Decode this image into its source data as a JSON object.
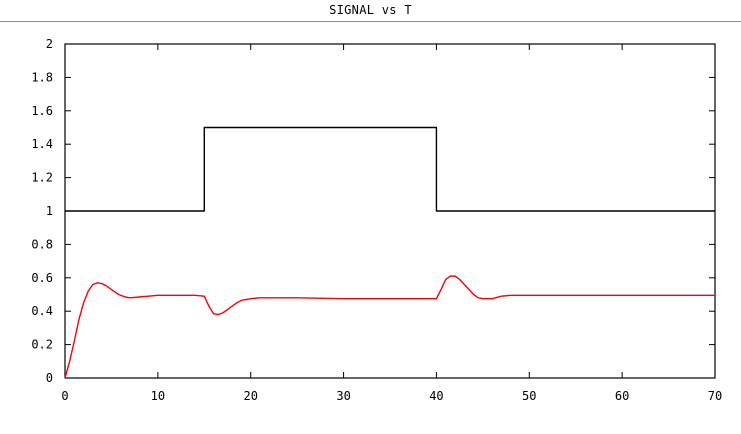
{
  "window": {
    "title": "SIGNAL vs T"
  },
  "chart_data": {
    "type": "line",
    "title": "",
    "xlabel": "",
    "ylabel": "",
    "xlim": [
      0,
      70
    ],
    "ylim": [
      0,
      2
    ],
    "xticks": [
      0,
      10,
      20,
      30,
      40,
      50,
      60,
      70
    ],
    "yticks": [
      0,
      0.2,
      0.4,
      0.6,
      0.8,
      1,
      1.2,
      1.4,
      1.6,
      1.8,
      2
    ],
    "xtick_labels": [
      "0",
      "10",
      "20",
      "30",
      "40",
      "50",
      "60",
      "70"
    ],
    "ytick_labels": [
      "0",
      "0.2",
      "0.4",
      "0.6",
      "0.8",
      "1",
      "1.2",
      "1.4",
      "1.6",
      "1.8",
      "2"
    ],
    "grid": false,
    "legend": "none",
    "series": [
      {
        "color": "#000000",
        "x": [
          0,
          15,
          15,
          40,
          40,
          70
        ],
        "y": [
          1,
          1,
          1.5,
          1.5,
          1,
          1
        ]
      },
      {
        "color": "#ff0000",
        "x": [
          0,
          0.5,
          1,
          1.5,
          2,
          2.5,
          3,
          3.5,
          4,
          4.5,
          5,
          5.5,
          6,
          6.5,
          7,
          8,
          9,
          10,
          11,
          12,
          13,
          14,
          15,
          15.5,
          16,
          16.5,
          17,
          17.5,
          18,
          18.5,
          19,
          20,
          21,
          22,
          23,
          25,
          30,
          35,
          40,
          40.5,
          41,
          41.5,
          42,
          42.5,
          43,
          43.5,
          44,
          44.5,
          45,
          46,
          47,
          48,
          50,
          55,
          60,
          65,
          70
        ],
        "y": [
          0,
          0.1,
          0.22,
          0.35,
          0.45,
          0.52,
          0.56,
          0.57,
          0.565,
          0.55,
          0.53,
          0.51,
          0.495,
          0.485,
          0.48,
          0.485,
          0.49,
          0.495,
          0.495,
          0.495,
          0.495,
          0.495,
          0.49,
          0.43,
          0.385,
          0.38,
          0.39,
          0.41,
          0.43,
          0.45,
          0.465,
          0.475,
          0.48,
          0.48,
          0.48,
          0.48,
          0.475,
          0.475,
          0.475,
          0.53,
          0.59,
          0.61,
          0.61,
          0.59,
          0.56,
          0.53,
          0.5,
          0.48,
          0.475,
          0.475,
          0.49,
          0.495,
          0.495,
          0.495,
          0.495,
          0.495,
          0.495
        ]
      }
    ]
  }
}
